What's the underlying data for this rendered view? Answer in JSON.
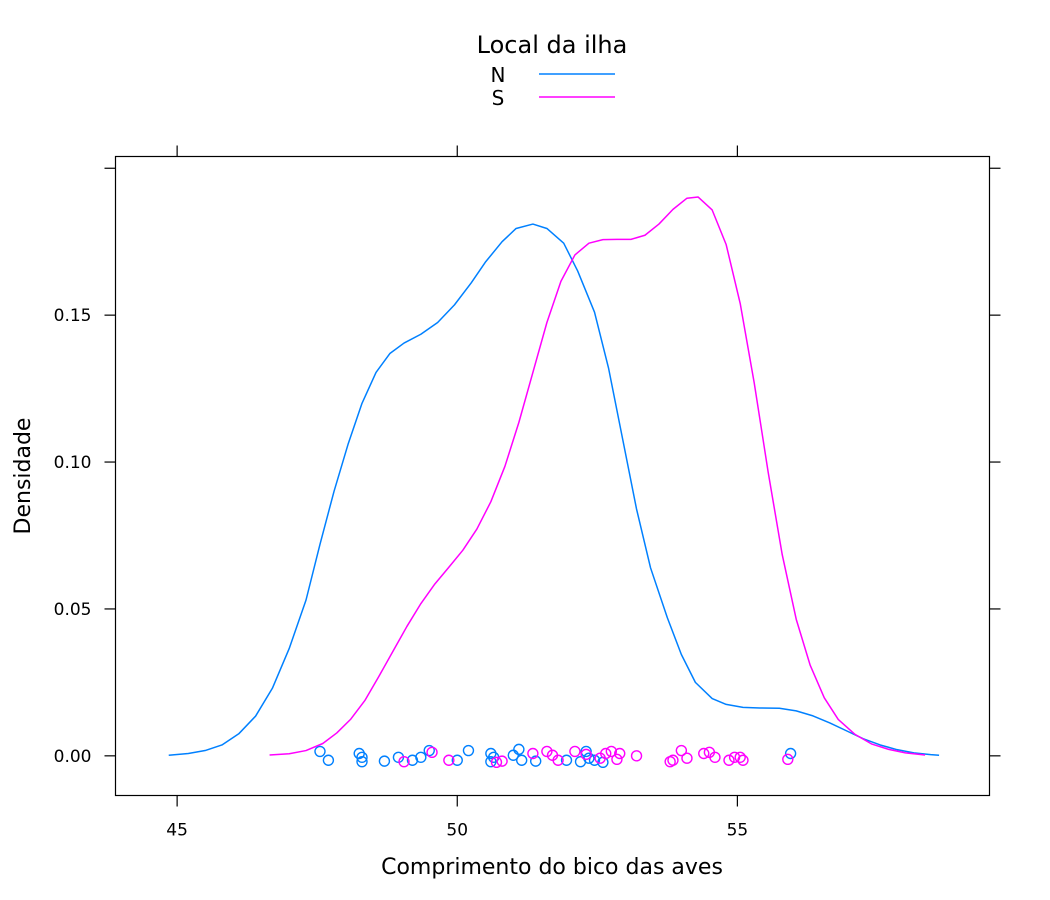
{
  "chart_data": {
    "type": "line",
    "title": "",
    "xlabel": "Comprimento do bico das aves",
    "ylabel": "Densidade",
    "xlim": [
      43.9,
      59.5
    ],
    "ylim": [
      -0.0135,
      0.204
    ],
    "x_ticks": [
      45,
      50,
      55
    ],
    "x_tick_labels": [
      "45",
      "50",
      "55"
    ],
    "y_ticks": [
      0,
      0.05,
      0.1,
      0.15
    ],
    "y_tick_labels": [
      "0.00",
      "0.05",
      "0.10",
      "0.15"
    ],
    "legend": {
      "title": "Local da ilha",
      "placement": "top",
      "entries": [
        "N",
        "S"
      ]
    },
    "series": [
      {
        "name": "N",
        "color": "#0080ff",
        "density": [
          [
            44.85,
            0.0002
          ],
          [
            45.2,
            0.0008
          ],
          [
            45.5,
            0.0018
          ],
          [
            45.8,
            0.0037
          ],
          [
            46.1,
            0.0075
          ],
          [
            46.4,
            0.0135
          ],
          [
            46.7,
            0.023
          ],
          [
            47.0,
            0.0365
          ],
          [
            47.3,
            0.053
          ],
          [
            47.55,
            0.072
          ],
          [
            47.8,
            0.09
          ],
          [
            48.05,
            0.106
          ],
          [
            48.3,
            0.12
          ],
          [
            48.55,
            0.1305
          ],
          [
            48.8,
            0.137
          ],
          [
            49.05,
            0.1405
          ],
          [
            49.35,
            0.1435
          ],
          [
            49.65,
            0.1475
          ],
          [
            49.95,
            0.1535
          ],
          [
            50.25,
            0.161
          ],
          [
            50.5,
            0.168
          ],
          [
            50.8,
            0.175
          ],
          [
            51.05,
            0.1795
          ],
          [
            51.35,
            0.181
          ],
          [
            51.6,
            0.1795
          ],
          [
            51.9,
            0.1745
          ],
          [
            52.15,
            0.165
          ],
          [
            52.45,
            0.151
          ],
          [
            52.7,
            0.132
          ],
          [
            52.95,
            0.108
          ],
          [
            53.2,
            0.084
          ],
          [
            53.45,
            0.064
          ],
          [
            53.75,
            0.047
          ],
          [
            54.0,
            0.0345
          ],
          [
            54.25,
            0.025
          ],
          [
            54.55,
            0.0195
          ],
          [
            54.8,
            0.0175
          ],
          [
            55.1,
            0.0165
          ],
          [
            55.4,
            0.0163
          ],
          [
            55.75,
            0.0162
          ],
          [
            56.05,
            0.0153
          ],
          [
            56.35,
            0.0136
          ],
          [
            56.65,
            0.0112
          ],
          [
            56.95,
            0.0085
          ],
          [
            57.25,
            0.0058
          ],
          [
            57.55,
            0.0037
          ],
          [
            57.85,
            0.0021
          ],
          [
            58.15,
            0.001
          ],
          [
            58.45,
            0.0004
          ],
          [
            58.6,
            0.0002
          ]
        ],
        "points": [
          [
            47.55,
            0.0015
          ],
          [
            47.7,
            -0.0015
          ],
          [
            48.25,
            0.0008
          ],
          [
            48.3,
            -0.0005
          ],
          [
            48.3,
            -0.002
          ],
          [
            48.7,
            -0.0018
          ],
          [
            48.95,
            -0.0005
          ],
          [
            49.2,
            -0.0015
          ],
          [
            49.35,
            -0.0005
          ],
          [
            49.5,
            0.0018
          ],
          [
            50.0,
            -0.0015
          ],
          [
            50.2,
            0.0018
          ],
          [
            50.6,
            0.0008
          ],
          [
            50.65,
            -0.0005
          ],
          [
            50.6,
            -0.002
          ],
          [
            51.0,
            0.0002
          ],
          [
            51.1,
            0.0022
          ],
          [
            51.15,
            -0.0015
          ],
          [
            51.4,
            -0.0018
          ],
          [
            51.95,
            -0.0015
          ],
          [
            52.2,
            -0.002
          ],
          [
            52.3,
            0.0015
          ],
          [
            52.35,
            -0.0008
          ],
          [
            52.45,
            -0.0015
          ],
          [
            52.6,
            -0.0022
          ],
          [
            55.95,
            0.0008
          ]
        ]
      },
      {
        "name": "S",
        "color": "#ff00ff",
        "density": [
          [
            46.65,
            0.0003
          ],
          [
            47.0,
            0.0007
          ],
          [
            47.3,
            0.0018
          ],
          [
            47.6,
            0.0042
          ],
          [
            47.85,
            0.0078
          ],
          [
            48.1,
            0.0125
          ],
          [
            48.35,
            0.0188
          ],
          [
            48.6,
            0.027
          ],
          [
            48.85,
            0.0355
          ],
          [
            49.1,
            0.044
          ],
          [
            49.35,
            0.0518
          ],
          [
            49.6,
            0.0585
          ],
          [
            49.85,
            0.0642
          ],
          [
            50.1,
            0.07
          ],
          [
            50.35,
            0.0772
          ],
          [
            50.6,
            0.0865
          ],
          [
            50.85,
            0.0985
          ],
          [
            51.1,
            0.1135
          ],
          [
            51.35,
            0.1305
          ],
          [
            51.6,
            0.1475
          ],
          [
            51.85,
            0.1615
          ],
          [
            52.1,
            0.1705
          ],
          [
            52.35,
            0.1745
          ],
          [
            52.6,
            0.1757
          ],
          [
            52.85,
            0.1758
          ],
          [
            53.1,
            0.1758
          ],
          [
            53.35,
            0.1772
          ],
          [
            53.6,
            0.181
          ],
          [
            53.85,
            0.186
          ],
          [
            54.1,
            0.1898
          ],
          [
            54.3,
            0.1902
          ],
          [
            54.55,
            0.1858
          ],
          [
            54.8,
            0.174
          ],
          [
            55.05,
            0.154
          ],
          [
            55.3,
            0.127
          ],
          [
            55.55,
            0.0965
          ],
          [
            55.8,
            0.0685
          ],
          [
            56.05,
            0.0465
          ],
          [
            56.3,
            0.0308
          ],
          [
            56.55,
            0.0198
          ],
          [
            56.8,
            0.0124
          ],
          [
            57.1,
            0.0073
          ],
          [
            57.4,
            0.004
          ],
          [
            57.7,
            0.0022
          ],
          [
            58.0,
            0.001
          ],
          [
            58.35,
            0.0003
          ]
        ],
        "points": [
          [
            49.05,
            -0.002
          ],
          [
            49.55,
            0.0012
          ],
          [
            49.85,
            -0.0015
          ],
          [
            50.7,
            -0.0022
          ],
          [
            50.8,
            -0.0018
          ],
          [
            51.35,
            0.0008
          ],
          [
            51.6,
            0.0015
          ],
          [
            51.7,
            0.0002
          ],
          [
            51.8,
            -0.0015
          ],
          [
            52.1,
            0.0015
          ],
          [
            52.3,
            0.0005
          ],
          [
            52.55,
            -0.0008
          ],
          [
            52.65,
            0.0008
          ],
          [
            52.75,
            0.0015
          ],
          [
            52.85,
            -0.0012
          ],
          [
            52.9,
            0.0008
          ],
          [
            53.2,
            0.0
          ],
          [
            53.8,
            -0.002
          ],
          [
            53.85,
            -0.0015
          ],
          [
            54.0,
            0.0018
          ],
          [
            54.1,
            -0.0008
          ],
          [
            54.4,
            0.0008
          ],
          [
            54.5,
            0.0012
          ],
          [
            54.6,
            -0.0005
          ],
          [
            54.85,
            -0.0015
          ],
          [
            54.95,
            -0.0005
          ],
          [
            55.05,
            -0.0005
          ],
          [
            55.1,
            -0.0015
          ],
          [
            55.9,
            -0.0012
          ]
        ]
      }
    ]
  }
}
